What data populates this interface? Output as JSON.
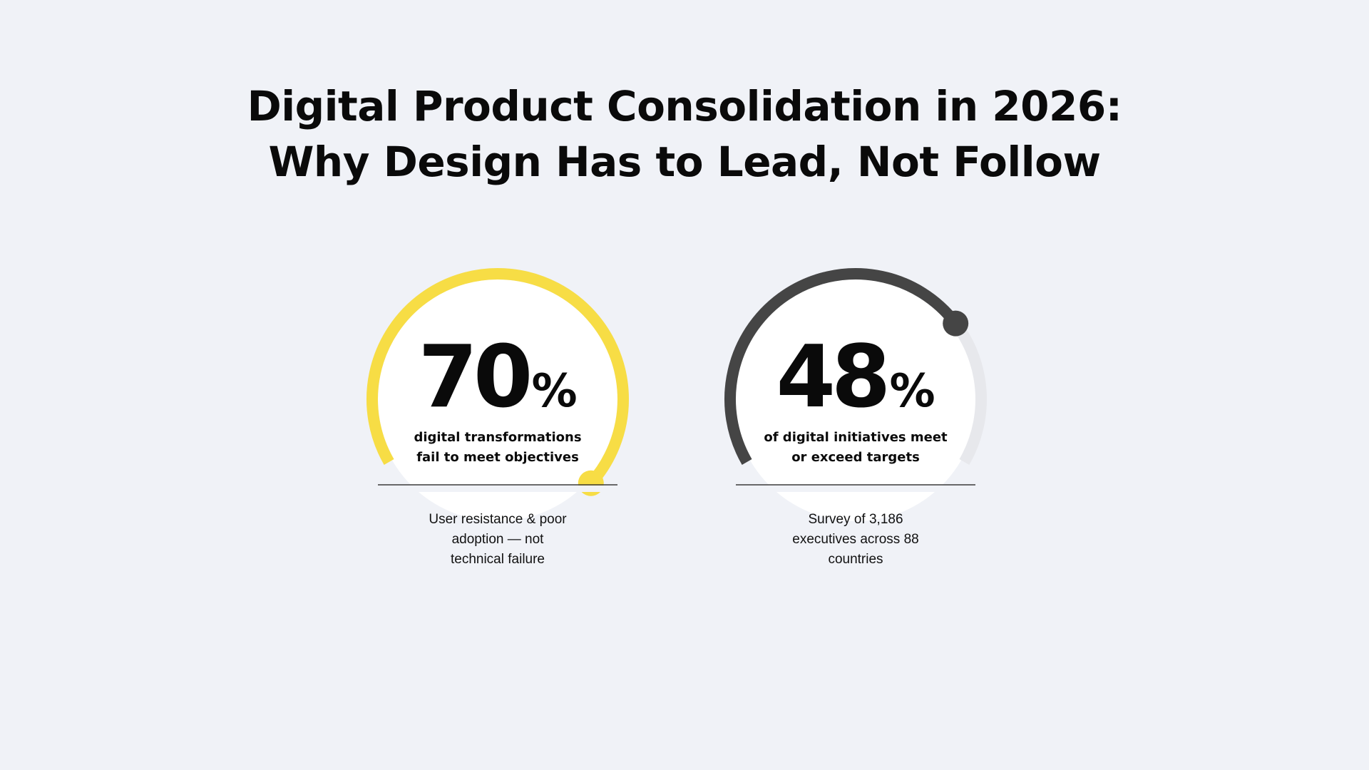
{
  "title": {
    "line1": "Digital Product Consolidation in 2026:",
    "line2": "Why Design Has to Lead, Not Follow"
  },
  "stats": [
    {
      "value": "70",
      "unit": "%",
      "percent": 70,
      "description": [
        "digital transformations",
        "fail to meet objectives"
      ],
      "note": [
        "User resistance & poor",
        "adoption — not",
        "technical failure"
      ],
      "accent_color": "#f7dd45"
    },
    {
      "value": "48",
      "unit": "%",
      "percent": 48,
      "description": [
        "of digital initiatives meet",
        "or exceed targets"
      ],
      "note": [
        "Survey of 3,186",
        "executives across 88",
        "countries"
      ],
      "accent_color": "#454545"
    }
  ],
  "colors": {
    "background": "#f0f2f7",
    "track": "#e7e8ec",
    "disc": "#ffffff",
    "baseline": "#3a3a3a"
  }
}
